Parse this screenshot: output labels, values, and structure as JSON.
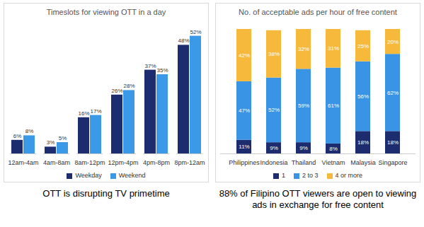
{
  "chart_data": [
    {
      "type": "bar",
      "title": "Timeslots for viewing OTT in a day",
      "caption": "OTT is disrupting TV primetime",
      "categories": [
        "12am-4am",
        "4am-8am",
        "8am-12pm",
        "12pm-4pm",
        "4pm-8pm",
        "8pm-12am"
      ],
      "series": [
        {
          "name": "Weekday",
          "color": "#1c2c6e",
          "values": [
            6,
            3,
            16,
            26,
            37,
            48
          ],
          "value_labels": [
            "6%",
            "3%",
            "16%",
            "26%",
            "37%",
            "48%"
          ]
        },
        {
          "name": "Weekend",
          "color": "#3a9ae8",
          "values": [
            8,
            5,
            17,
            28,
            35,
            52
          ],
          "value_labels": [
            "8%",
            "5%",
            "17%",
            "28%",
            "35%",
            "52%"
          ]
        }
      ],
      "ylim": [
        0,
        55
      ],
      "stacked": false,
      "data_labels": true,
      "tick_labels": "x",
      "legend": "bottom"
    },
    {
      "type": "bar",
      "title": "No. of acceptable ads per hour of free content",
      "caption": "88% of Filipino OTT viewers are open to viewing ads in exchange for free content",
      "categories": [
        "Philippines",
        "Indonesia",
        "Thailand",
        "Vietnam",
        "Malaysia",
        "Singapore"
      ],
      "series": [
        {
          "name": "1",
          "color": "#1c2c6e",
          "values": [
            11,
            9,
            9,
            8,
            18,
            18
          ],
          "value_labels": [
            "11%",
            "9%",
            "9%",
            "8%",
            "18%",
            "18%"
          ]
        },
        {
          "name": "2 to 3",
          "color": "#3a94e6",
          "values": [
            47,
            52,
            59,
            61,
            56,
            62
          ],
          "value_labels": [
            "47%",
            "52%",
            "59%",
            "61%",
            "56%",
            "62%"
          ]
        },
        {
          "name": "4 or more",
          "color": "#f6b93b",
          "values": [
            42,
            38,
            32,
            31,
            25,
            20
          ],
          "value_labels": [
            "42%",
            "38%",
            "32%",
            "31%",
            "25%",
            "20%"
          ]
        }
      ],
      "ylim": [
        0,
        100
      ],
      "stacked": true,
      "data_labels": true,
      "tick_labels": "x",
      "legend": "bottom"
    }
  ]
}
